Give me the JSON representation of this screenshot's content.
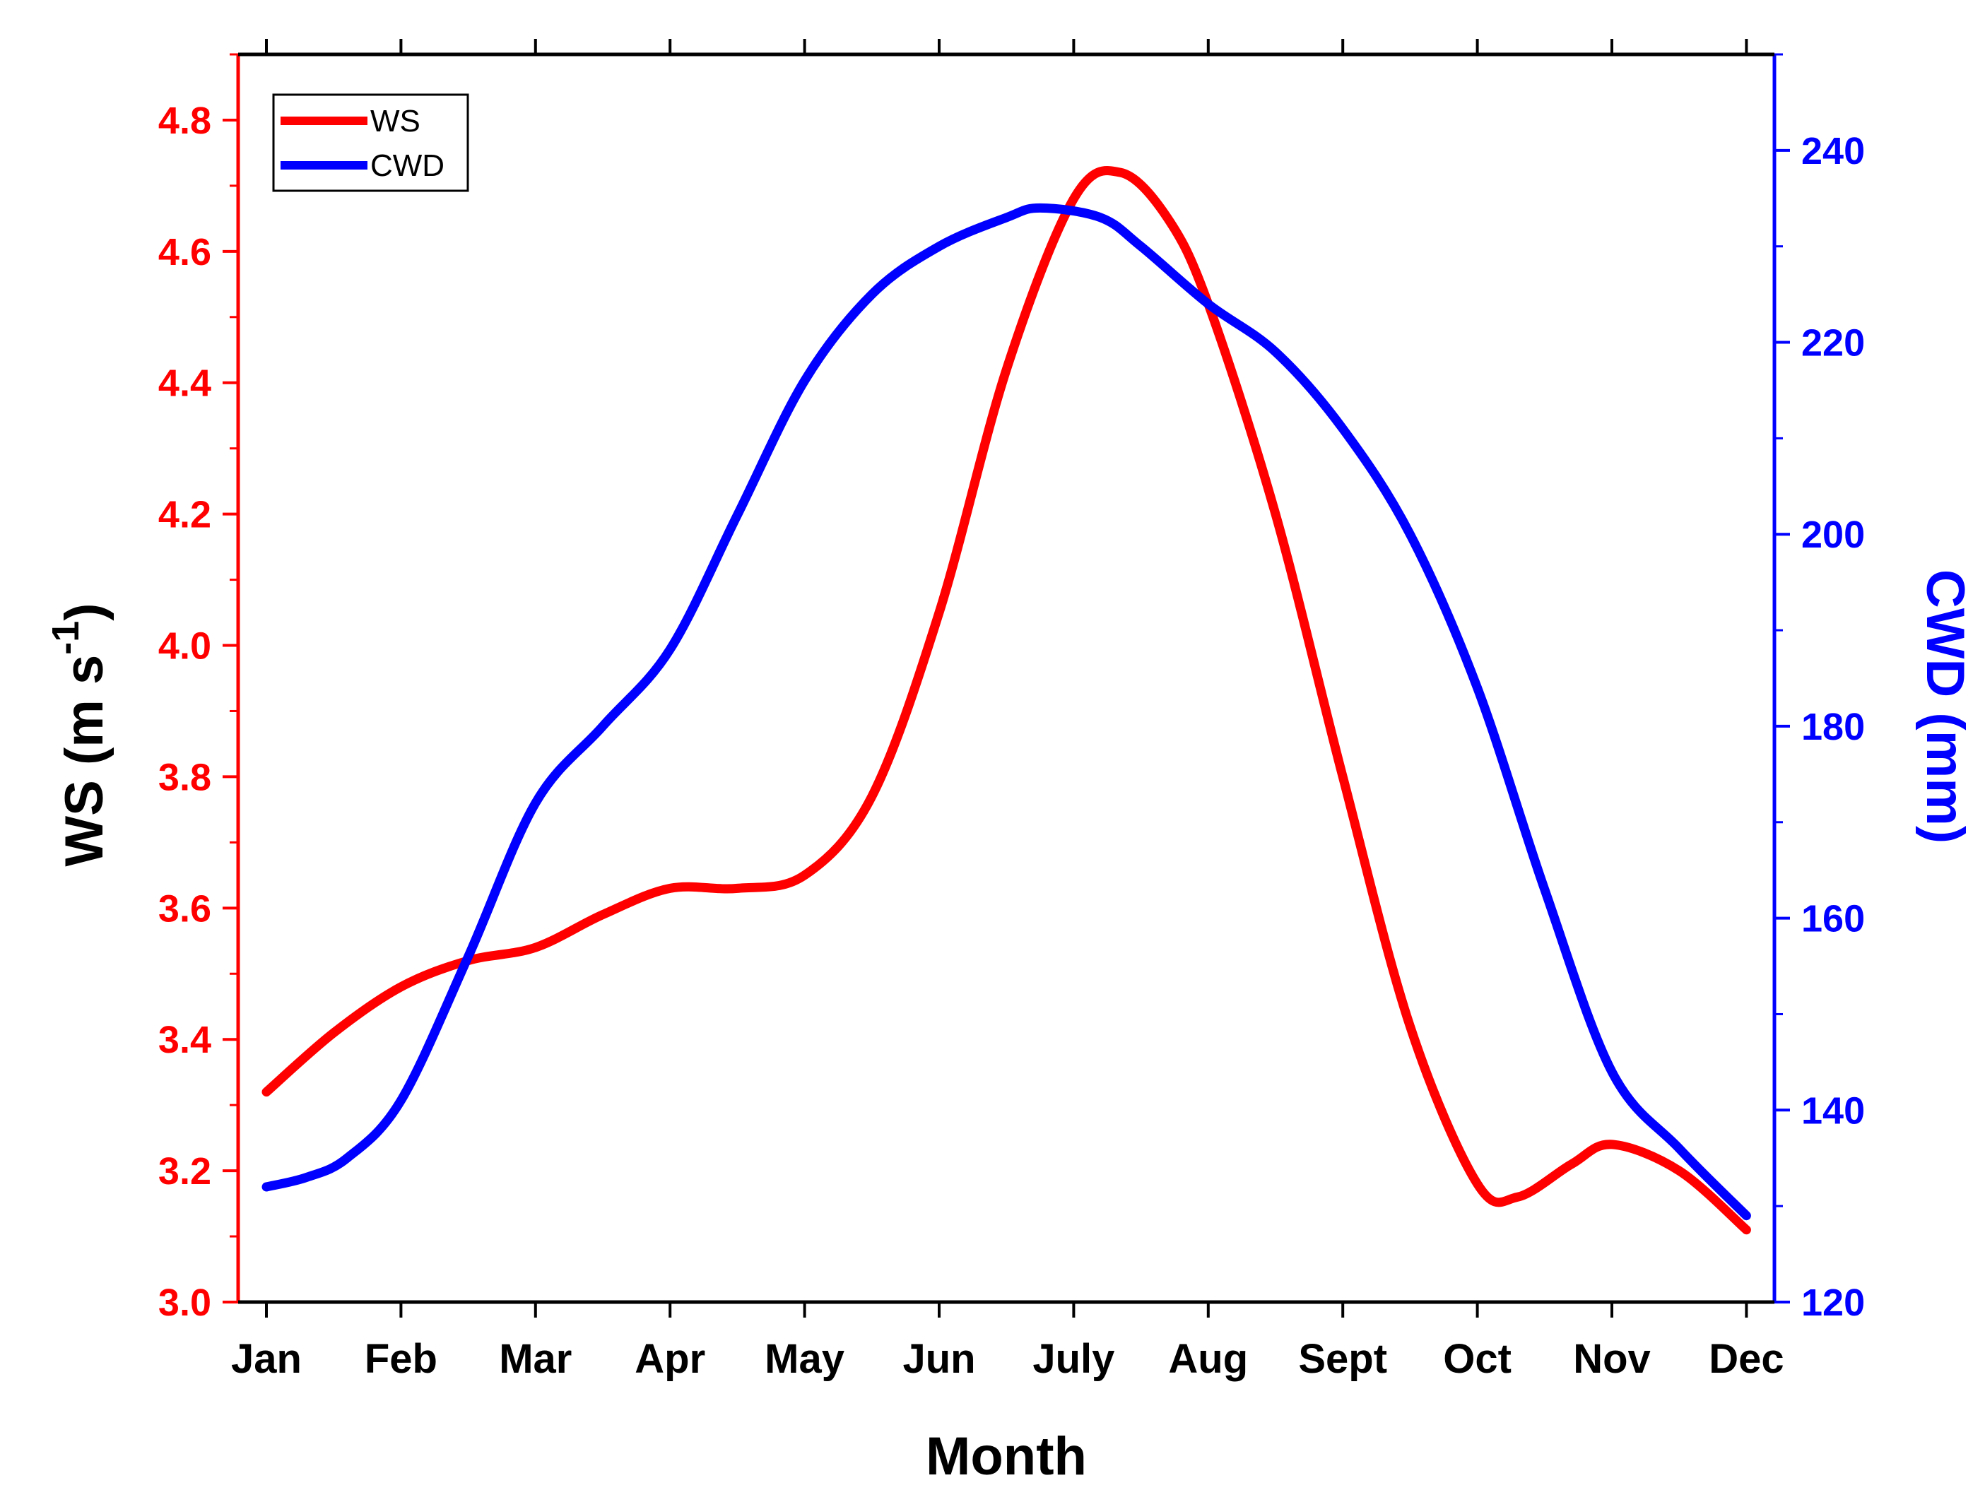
{
  "chart_data": {
    "type": "line",
    "title": "",
    "xlabel": "Month",
    "categories": [
      "Jan",
      "Feb",
      "Mar",
      "Apr",
      "May",
      "Jun",
      "July",
      "Aug",
      "Sept",
      "Oct",
      "Nov",
      "Dec"
    ],
    "y_left": {
      "label_main": "WS (m s",
      "label_sup": "-1",
      "label_close": ")",
      "ylim": [
        3.0,
        4.9
      ],
      "ticks": [
        "3.0",
        "3.2",
        "3.4",
        "3.6",
        "3.8",
        "4.0",
        "4.2",
        "4.4",
        "4.6",
        "4.8"
      ],
      "color": "#ff0000"
    },
    "y_right": {
      "label": "CWD (mm)",
      "ylim": [
        120,
        250
      ],
      "ticks": [
        "120",
        "140",
        "160",
        "180",
        "200",
        "220",
        "240"
      ],
      "color": "#0000ff"
    },
    "series": [
      {
        "name": "WS",
        "axis": "left",
        "color": "#ff0000",
        "points": [
          [
            0,
            3.32
          ],
          [
            0.5,
            3.41
          ],
          [
            1,
            3.48
          ],
          [
            1.5,
            3.52
          ],
          [
            2,
            3.54
          ],
          [
            2.5,
            3.59
          ],
          [
            3,
            3.63
          ],
          [
            3.5,
            3.63
          ],
          [
            4,
            3.65
          ],
          [
            4.5,
            3.77
          ],
          [
            5,
            4.05
          ],
          [
            5.5,
            4.42
          ],
          [
            6,
            4.68
          ],
          [
            6.35,
            4.72
          ],
          [
            6.7,
            4.65
          ],
          [
            7,
            4.52
          ],
          [
            7.5,
            4.2
          ],
          [
            8,
            3.8
          ],
          [
            8.5,
            3.42
          ],
          [
            9,
            3.18
          ],
          [
            9.3,
            3.16
          ],
          [
            9.7,
            3.21
          ],
          [
            10,
            3.24
          ],
          [
            10.5,
            3.2
          ],
          [
            11,
            3.11
          ]
        ]
      },
      {
        "name": "CWD",
        "axis": "right",
        "color": "#0000ff",
        "points": [
          [
            0,
            132
          ],
          [
            0.3,
            133
          ],
          [
            0.6,
            135
          ],
          [
            1,
            141
          ],
          [
            1.5,
            156
          ],
          [
            2,
            172
          ],
          [
            2.5,
            180
          ],
          [
            3,
            188
          ],
          [
            3.5,
            202
          ],
          [
            4,
            216
          ],
          [
            4.5,
            225
          ],
          [
            5,
            230
          ],
          [
            5.5,
            233
          ],
          [
            5.75,
            234
          ],
          [
            6.2,
            233
          ],
          [
            6.5,
            230
          ],
          [
            7,
            224
          ],
          [
            7.5,
            219
          ],
          [
            8,
            211
          ],
          [
            8.5,
            200
          ],
          [
            9,
            184
          ],
          [
            9.5,
            163
          ],
          [
            10,
            144
          ],
          [
            10.5,
            136
          ],
          [
            11,
            129
          ]
        ]
      }
    ],
    "legend": {
      "position": "top-left",
      "entries": [
        {
          "label": "WS",
          "color": "#ff0000"
        },
        {
          "label": "CWD",
          "color": "#0000ff"
        }
      ]
    }
  }
}
